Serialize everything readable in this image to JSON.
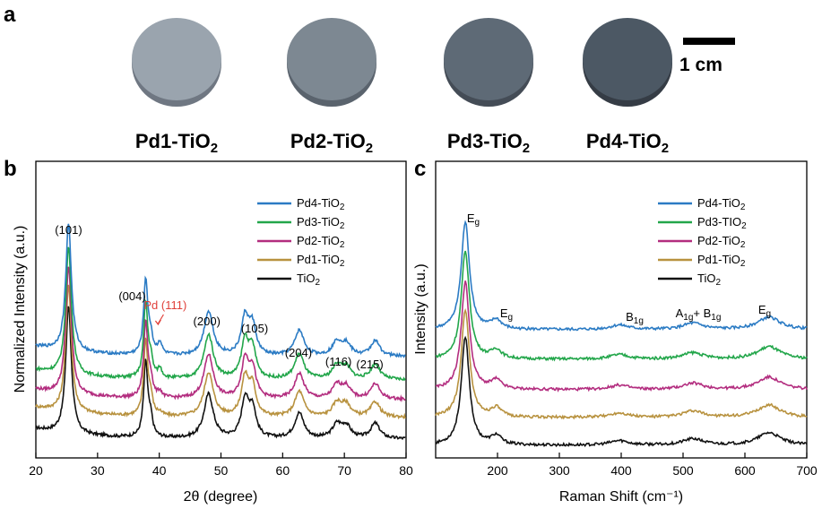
{
  "panel_a": {
    "letter": "a",
    "scale_bar_label": "1 cm",
    "samples": [
      {
        "base": "Pd1-TiO",
        "sub": "2",
        "color": "#9aa4ae",
        "edge": "#6f7782"
      },
      {
        "base": "Pd2-TiO",
        "sub": "2",
        "color": "#7d8892",
        "edge": "#5a636d"
      },
      {
        "base": "Pd3-TiO",
        "sub": "2",
        "color": "#5e6a76",
        "edge": "#444c56"
      },
      {
        "base": "Pd4-TiO",
        "sub": "2",
        "color": "#4c5864",
        "edge": "#353c45"
      }
    ]
  },
  "chart_data": [
    {
      "panel": "b",
      "type": "line",
      "xlabel": "2θ (degree)",
      "ylabel": "Normalized Intensity (a.u.)",
      "xlim": [
        20,
        80
      ],
      "xticks": [
        20,
        30,
        40,
        50,
        60,
        70,
        80
      ],
      "y_ticks_shown": false,
      "legend_position": "top-right",
      "series": [
        {
          "name": "Pd4-TiO",
          "name_sub": "2",
          "color": "#2b7bc4",
          "offset": 4
        },
        {
          "name": "Pd3-TiO",
          "name_sub": "2",
          "color": "#22a64a",
          "offset": 3
        },
        {
          "name": "Pd2-TiO",
          "name_sub": "2",
          "color": "#b32d7f",
          "offset": 2
        },
        {
          "name": "Pd1-TiO",
          "name_sub": "2",
          "color": "#b8923f",
          "offset": 1
        },
        {
          "name": "TiO",
          "name_sub": "2",
          "color": "#111111",
          "offset": 0
        }
      ],
      "peaks": [
        {
          "x": 25.3,
          "label": "(101)"
        },
        {
          "x": 37.8,
          "label": "(004)"
        },
        {
          "x": 40.1,
          "label": "Pd (111)",
          "color": "#e0403a"
        },
        {
          "x": 48.0,
          "label": "(200)"
        },
        {
          "x": 54.0,
          "label": "(105)"
        },
        {
          "x": 62.7,
          "label": "(204)"
        },
        {
          "x": 68.9,
          "label": "(116)"
        },
        {
          "x": 75.0,
          "label": "(215)"
        }
      ]
    },
    {
      "panel": "c",
      "type": "line",
      "xlabel": "Raman Shift (cm⁻¹)",
      "ylabel": "Intensity (a.u.)",
      "xlim": [
        100,
        700
      ],
      "xticks": [
        200,
        300,
        400,
        500,
        600,
        700
      ],
      "y_ticks_shown": false,
      "legend_position": "top-right",
      "series": [
        {
          "name": "Pd4-TiO",
          "name_sub": "2",
          "color": "#2b7bc4",
          "offset": 4
        },
        {
          "name": "Pd3-TIO",
          "name_sub": "2",
          "color": "#22a64a",
          "offset": 3
        },
        {
          "name": "Pd2-TiO",
          "name_sub": "2",
          "color": "#b32d7f",
          "offset": 2
        },
        {
          "name": "Pd1-TiO",
          "name_sub": "2",
          "color": "#b8923f",
          "offset": 1
        },
        {
          "name": "TiO",
          "name_sub": "2",
          "color": "#111111",
          "offset": 0
        }
      ],
      "modes": [
        {
          "x": 144,
          "base": "E",
          "sub": "g"
        },
        {
          "x": 197,
          "base": "E",
          "sub": "g"
        },
        {
          "x": 397,
          "base": "B",
          "sub": "1g"
        },
        {
          "x": 516,
          "base": "A",
          "sub": "1g",
          "base2": "+ B",
          "sub2": "1g"
        },
        {
          "x": 639,
          "base": "E",
          "sub": "g"
        }
      ]
    }
  ]
}
